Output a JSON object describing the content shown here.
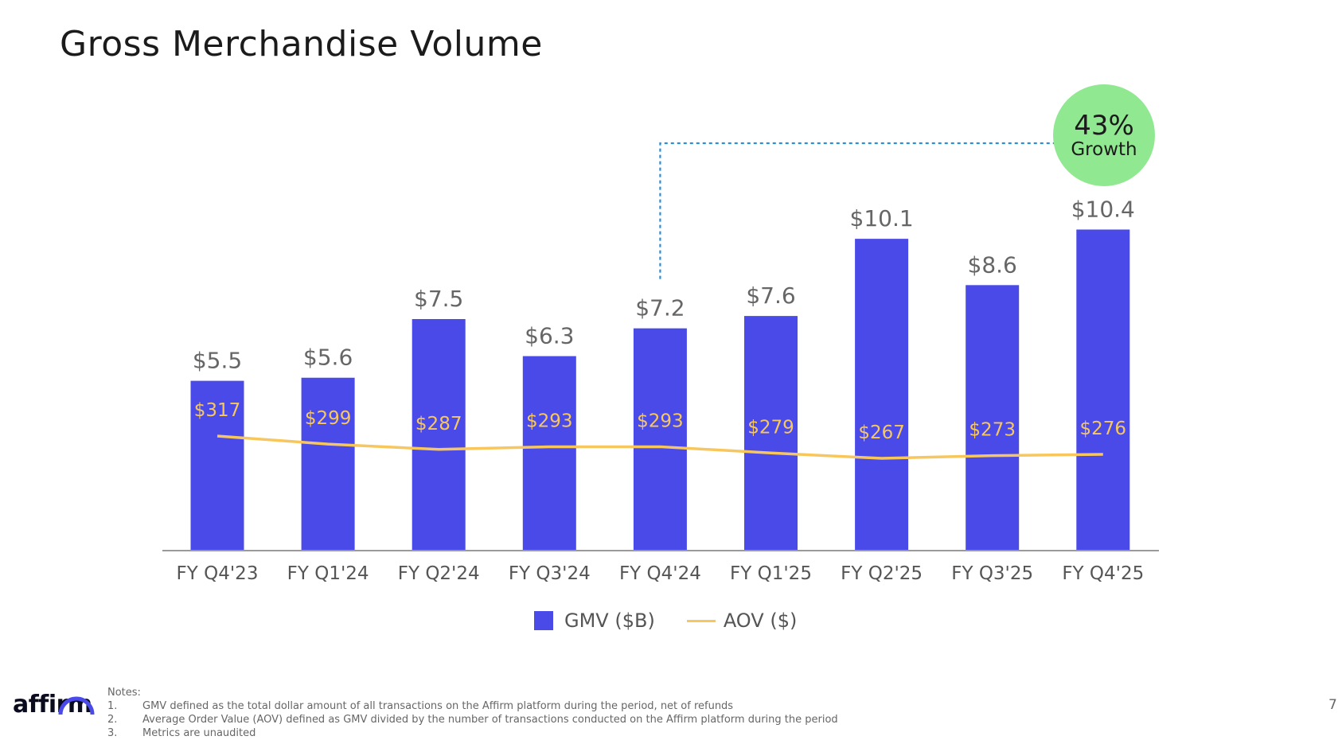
{
  "title": "Gross Merchandise Volume",
  "growth": {
    "pct": "43%",
    "word": "Growth"
  },
  "legend": {
    "gmv": "GMV ($B)",
    "aov": "AOV ($)"
  },
  "notes": {
    "heading": "Notes:",
    "items": [
      {
        "num": "1.",
        "text": "GMV defined as the total dollar amount of all transactions on the Affirm platform during the period, net of refunds"
      },
      {
        "num": "2.",
        "text": "Average Order Value (AOV) defined as GMV divided by the number of transactions conducted on the Affirm platform during the period"
      },
      {
        "num": "3.",
        "text": "Metrics are unaudited"
      }
    ]
  },
  "logo": "affirm",
  "page_number": "7",
  "colors": {
    "bar": "#4a4ae8",
    "line": "#f7c75e",
    "growth_bubble": "#90e890",
    "dashed": "#2a8fd8"
  },
  "chart_data": {
    "type": "bar",
    "categories": [
      "FY Q4'23",
      "FY Q1'24",
      "FY Q2'24",
      "FY Q3'24",
      "FY Q4'24",
      "FY Q1'25",
      "FY Q2'25",
      "FY Q3'25",
      "FY Q4'25"
    ],
    "series": [
      {
        "name": "GMV ($B)",
        "type": "bar",
        "values": [
          5.5,
          5.6,
          7.5,
          6.3,
          7.2,
          7.6,
          10.1,
          8.6,
          10.4
        ],
        "labels": [
          "$5.5",
          "$5.6",
          "$7.5",
          "$6.3",
          "$7.2",
          "$7.6",
          "$10.1",
          "$8.6",
          "$10.4"
        ]
      },
      {
        "name": "AOV ($)",
        "type": "line",
        "values": [
          317,
          299,
          287,
          293,
          293,
          279,
          267,
          273,
          276
        ],
        "labels": [
          "$317",
          "$299",
          "$287",
          "$293",
          "$293",
          "$279",
          "$267",
          "$273",
          "$276"
        ]
      }
    ],
    "annotation": {
      "text": "43% Growth",
      "from": "FY Q4'24",
      "to": "FY Q4'25"
    }
  }
}
